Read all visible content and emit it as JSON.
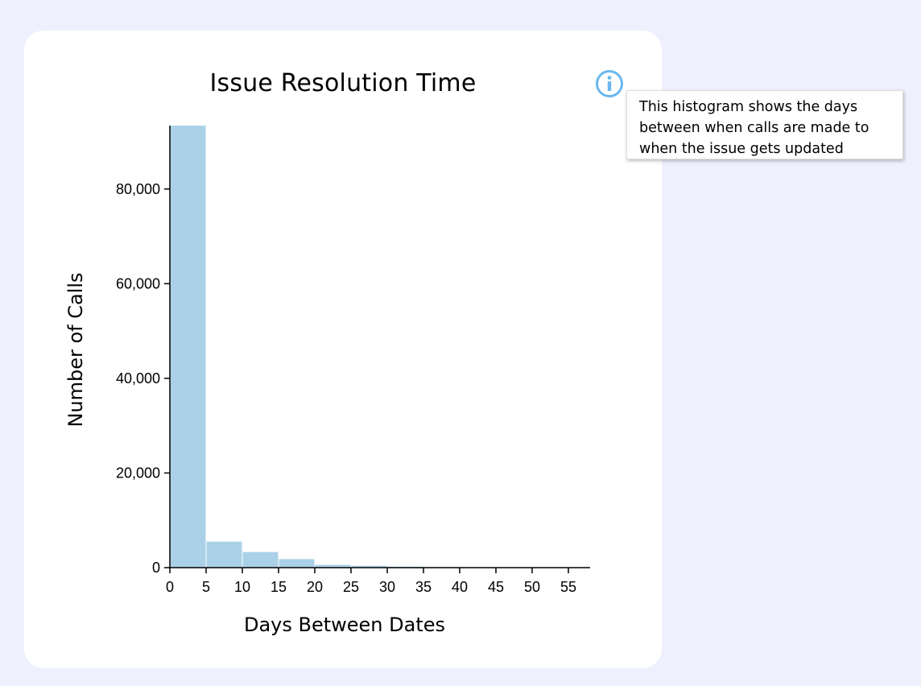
{
  "chart": {
    "title": "Issue Resolution Time",
    "info_tooltip": "This histogram shows the days between when calls are made to when the issue gets updated"
  },
  "icons": {
    "info": "info-circle-icon"
  },
  "colors": {
    "background": "#eef0fd",
    "bar": "#abd1e8",
    "info_icon": "#6ab7ef"
  },
  "chart_data": {
    "type": "bar",
    "title": "Issue Resolution Time",
    "xlabel": "Days Between Dates",
    "ylabel": "Number of Calls",
    "bins": [
      {
        "x0": 0,
        "x1": 5,
        "value": 93400
      },
      {
        "x0": 5,
        "x1": 10,
        "value": 5500
      },
      {
        "x0": 10,
        "x1": 15,
        "value": 3300
      },
      {
        "x0": 15,
        "x1": 20,
        "value": 1800
      },
      {
        "x0": 20,
        "x1": 25,
        "value": 600
      },
      {
        "x0": 25,
        "x1": 30,
        "value": 400
      },
      {
        "x0": 30,
        "x1": 35,
        "value": 200
      },
      {
        "x0": 35,
        "x1": 40,
        "value": 100
      },
      {
        "x0": 40,
        "x1": 45,
        "value": 60
      },
      {
        "x0": 45,
        "x1": 50,
        "value": 40
      },
      {
        "x0": 50,
        "x1": 55,
        "value": 30
      }
    ],
    "xlim": [
      0,
      58
    ],
    "ylim": [
      0,
      93400
    ],
    "x_ticks": [
      0,
      5,
      10,
      15,
      20,
      25,
      30,
      35,
      40,
      45,
      50,
      55
    ],
    "y_ticks": [
      0,
      20000,
      40000,
      60000,
      80000
    ],
    "y_tick_labels": [
      "0",
      "20,000",
      "40,000",
      "60,000",
      "80,000"
    ],
    "grid": false,
    "legend": "none"
  }
}
